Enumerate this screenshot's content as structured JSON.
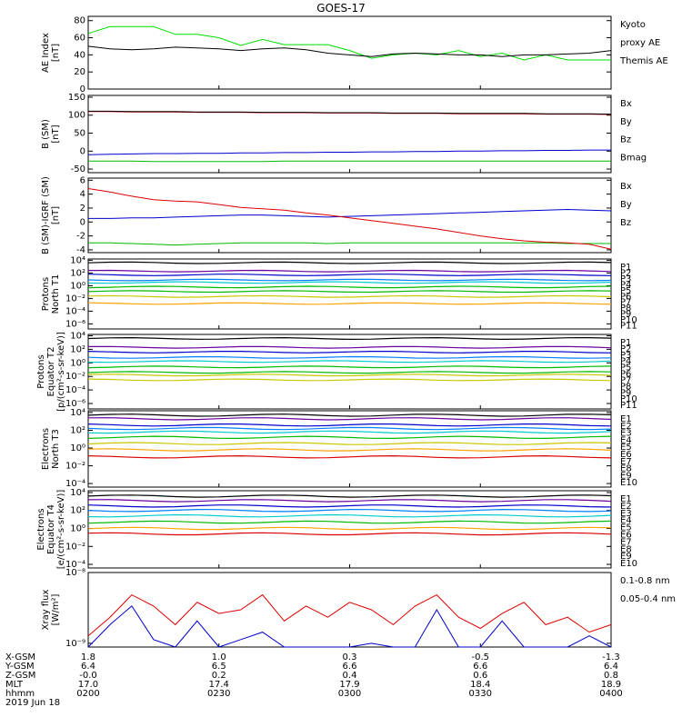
{
  "title": "GOES-17",
  "panels": [
    {
      "id": "ae",
      "ylabel": [
        "AE Index",
        "[nT]"
      ],
      "yticks": [
        "80",
        "60",
        "40",
        "20",
        "0"
      ],
      "legend": [
        {
          "text": "Kyoto",
          "color": "#00dd00"
        },
        {
          "text": "proxy AE",
          "color": "#00dd00"
        },
        {
          "text": "Themis AE",
          "color": "#000000"
        }
      ]
    },
    {
      "id": "bsm",
      "ylabel": [
        "B (SM)",
        "[nT]"
      ],
      "yticks": [
        "150",
        "100",
        "50",
        "0",
        "-50"
      ],
      "legend": [
        {
          "text": "Bx",
          "color": "#0000cc"
        },
        {
          "text": "By",
          "color": "#00bb00"
        },
        {
          "text": "Bz",
          "color": "#dd0000"
        },
        {
          "text": "Bmag",
          "color": "#000000"
        }
      ]
    },
    {
      "id": "bigrf",
      "ylabel": [
        "B (SM)-IGRF (SM)",
        "[nT]"
      ],
      "yticks": [
        "6",
        "4",
        "2",
        "0",
        "-2",
        "-4"
      ],
      "legend": [
        {
          "text": "Bx",
          "color": "#0000cc"
        },
        {
          "text": "By",
          "color": "#00bb00"
        },
        {
          "text": "Bz",
          "color": "#dd0000"
        }
      ]
    },
    {
      "id": "pnorth",
      "ylabel": [
        "Protons",
        "North T1"
      ],
      "yticks": [
        "10⁴",
        "10²",
        "10⁰",
        "10⁻²",
        "10⁻⁴",
        "10⁻⁶"
      ],
      "legend": [
        {
          "text": "P1",
          "color": "#000000"
        },
        {
          "text": "P2",
          "color": "#6a00a0"
        },
        {
          "text": "P3",
          "color": "#0000cc"
        },
        {
          "text": "P4",
          "color": "#0080ff"
        },
        {
          "text": "P5",
          "color": "#00cccc"
        },
        {
          "text": "P6",
          "color": "#00bb00"
        },
        {
          "text": "P7",
          "color": "#c8c800"
        },
        {
          "text": "P8",
          "color": "#ffa000"
        },
        {
          "text": "P9",
          "color": "#ff6000"
        },
        {
          "text": "P10",
          "color": "#dd0000"
        },
        {
          "text": "P11",
          "color": "#a00000"
        }
      ]
    },
    {
      "id": "peq",
      "ylabel": [
        "Protons",
        "Equator T2",
        "[p/(cm²-s-sr-keV)]"
      ],
      "yticks": [
        "10⁴",
        "10²",
        "10⁰",
        "10⁻²",
        "10⁻⁴",
        "10⁻⁶"
      ],
      "legend": [
        {
          "text": "P1",
          "color": "#000000"
        },
        {
          "text": "P2",
          "color": "#6a00a0"
        },
        {
          "text": "P3",
          "color": "#0000cc"
        },
        {
          "text": "P4",
          "color": "#0080ff"
        },
        {
          "text": "P5",
          "color": "#00cccc"
        },
        {
          "text": "P6",
          "color": "#00bb00"
        },
        {
          "text": "P7",
          "color": "#c8c800"
        },
        {
          "text": "P8",
          "color": "#ffa000"
        },
        {
          "text": "P9",
          "color": "#ff6000"
        },
        {
          "text": "P10",
          "color": "#dd0000"
        },
        {
          "text": "P11",
          "color": "#a00000"
        }
      ]
    },
    {
      "id": "enorth",
      "ylabel": [
        "Electrons",
        "North T3"
      ],
      "yticks": [
        "10⁴",
        "10²",
        "10⁰",
        "10⁻²",
        "10⁻⁴"
      ],
      "legend": [
        {
          "text": "E1",
          "color": "#000000"
        },
        {
          "text": "E2",
          "color": "#6a00a0"
        },
        {
          "text": "E3",
          "color": "#0000cc"
        },
        {
          "text": "E4",
          "color": "#0080ff"
        },
        {
          "text": "E5",
          "color": "#00cccc"
        },
        {
          "text": "E6",
          "color": "#00bb00"
        },
        {
          "text": "E7",
          "color": "#c8c800"
        },
        {
          "text": "E8",
          "color": "#ffa000"
        },
        {
          "text": "E9",
          "color": "#dd0000"
        },
        {
          "text": "E10",
          "color": "#a00000"
        }
      ]
    },
    {
      "id": "eeq",
      "ylabel": [
        "Electrons",
        "Equator T4",
        "[e/(cm²-s-sr-keV)]"
      ],
      "yticks": [
        "10⁴",
        "10²",
        "10⁰",
        "10⁻²",
        "10⁻⁴"
      ],
      "legend": [
        {
          "text": "E1",
          "color": "#000000"
        },
        {
          "text": "E2",
          "color": "#6a00a0"
        },
        {
          "text": "E3",
          "color": "#0000cc"
        },
        {
          "text": "E4",
          "color": "#0080ff"
        },
        {
          "text": "E5",
          "color": "#00cccc"
        },
        {
          "text": "E6",
          "color": "#00bb00"
        },
        {
          "text": "E7",
          "color": "#c8c800"
        },
        {
          "text": "E8",
          "color": "#ffa000"
        },
        {
          "text": "E9",
          "color": "#dd0000"
        },
        {
          "text": "E10",
          "color": "#a00000"
        }
      ]
    },
    {
      "id": "xray",
      "ylabel": [
        "Xray flux",
        "[W/m²]"
      ],
      "yticks": [
        "10⁻⁸",
        "10⁻⁹"
      ],
      "legend": [
        {
          "text": "0.1-0.8 nm",
          "color": "#dd0000"
        },
        {
          "text": "0.05-0.4 nm",
          "color": "#0000cc"
        }
      ]
    }
  ],
  "footer": {
    "labels": [
      "X-GSM",
      "Y-GSM",
      "Z-GSM",
      "MLT",
      "hhmm",
      "2019 Jun 18"
    ],
    "columns": [
      [
        "1.8",
        "6.4",
        "-0.0",
        "17.0",
        "0200"
      ],
      [
        "1.0",
        "6.5",
        "0.2",
        "17.4",
        "0230"
      ],
      [
        "0.3",
        "6.6",
        "0.4",
        "17.9",
        "0300"
      ],
      [
        "-0.5",
        "6.6",
        "0.6",
        "18.4",
        "0330"
      ],
      [
        "-1.3",
        "6.4",
        "0.8",
        "18.9",
        "0400"
      ]
    ]
  },
  "chart_data": {
    "type": "line",
    "title": "GOES-17",
    "x": [
      0,
      5,
      10,
      15,
      20,
      25,
      30,
      35,
      40,
      45,
      50,
      55,
      60,
      65,
      70,
      75,
      80,
      85,
      90,
      95,
      100,
      105,
      110,
      115,
      120
    ],
    "series": [
      {
        "name": "Kyoto proxy AE",
        "panel": "ae",
        "color": "#00dd00",
        "values": [
          65,
          73,
          73,
          73,
          64,
          64,
          60,
          51,
          58,
          52,
          52,
          52,
          45,
          36,
          40,
          42,
          40,
          45,
          38,
          42,
          34,
          40,
          34,
          34,
          34
        ]
      },
      {
        "name": "Themis AE",
        "panel": "ae",
        "color": "#000000",
        "values": [
          50,
          47,
          46,
          47,
          49,
          48,
          47,
          45,
          47,
          48,
          46,
          42,
          40,
          38,
          41,
          42,
          41,
          40,
          40,
          38,
          40,
          40,
          41,
          42,
          45
        ]
      },
      {
        "name": "Bx",
        "panel": "bsm",
        "color": "#0000cc",
        "values": [
          -10,
          -9,
          -8,
          -7,
          -7,
          -6,
          -6,
          -5,
          -5,
          -4,
          -4,
          -3,
          -3,
          -2,
          -2,
          -1,
          -1,
          0,
          0,
          1,
          1,
          2,
          2,
          3,
          3
        ]
      },
      {
        "name": "By",
        "panel": "bsm",
        "color": "#00bb00",
        "values": [
          -28,
          -28,
          -28,
          -29,
          -29,
          -29,
          -29,
          -29,
          -29,
          -28,
          -28,
          -28,
          -28,
          -28,
          -28,
          -28,
          -28,
          -28,
          -28,
          -28,
          -28,
          -28,
          -28,
          -28,
          -28
        ]
      },
      {
        "name": "Bz",
        "panel": "bsm",
        "color": "#dd0000",
        "values": [
          110,
          110,
          109,
          109,
          109,
          108,
          108,
          108,
          107,
          107,
          107,
          106,
          106,
          106,
          105,
          105,
          105,
          104,
          104,
          104,
          104,
          103,
          103,
          103,
          102
        ]
      },
      {
        "name": "Bmag",
        "panel": "bsm",
        "color": "#000000",
        "values": [
          111,
          111,
          110,
          110,
          110,
          109,
          109,
          109,
          108,
          108,
          108,
          107,
          107,
          107,
          106,
          106,
          106,
          105,
          105,
          105,
          105,
          104,
          104,
          104,
          103
        ]
      },
      {
        "name": "Bx",
        "panel": "bigrf",
        "color": "#0000cc",
        "values": [
          0.5,
          0.5,
          0.6,
          0.6,
          0.7,
          0.8,
          0.9,
          1.0,
          1.0,
          0.9,
          0.8,
          0.7,
          0.8,
          0.9,
          1.0,
          1.1,
          1.2,
          1.3,
          1.4,
          1.5,
          1.6,
          1.7,
          1.8,
          1.7,
          1.6
        ]
      },
      {
        "name": "By",
        "panel": "bigrf",
        "color": "#00bb00",
        "values": [
          -3.0,
          -3.0,
          -3.1,
          -3.2,
          -3.3,
          -3.2,
          -3.1,
          -3.0,
          -3.0,
          -3.0,
          -3.0,
          -3.1,
          -3.0,
          -3.0,
          -3.0,
          -3.0,
          -3.0,
          -3.0,
          -3.0,
          -3.0,
          -3.0,
          -3.0,
          -3.1,
          -3.1,
          -3.1
        ]
      },
      {
        "name": "Bz",
        "panel": "bigrf",
        "color": "#dd0000",
        "values": [
          4.8,
          4.3,
          3.7,
          3.2,
          3.0,
          2.9,
          2.5,
          2.1,
          1.9,
          1.7,
          1.3,
          1.0,
          0.6,
          0.2,
          -0.2,
          -0.6,
          -1.0,
          -1.5,
          -2.0,
          -2.4,
          -2.7,
          -2.9,
          -3.0,
          -3.2,
          -3.9
        ]
      },
      {
        "name": "X-ray 0.1-0.8 nm",
        "panel": "xray",
        "color": "#dd0000",
        "values": [
          0.15,
          0.4,
          0.7,
          0.55,
          0.3,
          0.6,
          0.45,
          0.5,
          0.7,
          0.35,
          0.55,
          0.4,
          0.6,
          0.5,
          0.3,
          0.55,
          0.7,
          0.4,
          0.25,
          0.45,
          0.6,
          0.3,
          0.4,
          0.2,
          0.3
        ]
      },
      {
        "name": "X-ray 0.05-0.4 nm",
        "panel": "xray",
        "color": "#0000cc",
        "values": [
          0.0,
          0.3,
          0.55,
          0.1,
          0.0,
          0.35,
          0.0,
          0.1,
          0.2,
          0.0,
          0.0,
          0.0,
          0.0,
          0.05,
          0.0,
          0.0,
          0.5,
          0.0,
          0.0,
          0.35,
          0.0,
          0.0,
          0.0,
          0.15,
          0.0
        ]
      }
    ],
    "log_panels": [
      {
        "panel": "pnorth",
        "levels": [
          3.6,
          2.3,
          1.7,
          0.9,
          0.5,
          -0.2,
          -0.9,
          -1.7,
          -2.8
        ],
        "colors": [
          "#000000",
          "#6a00a0",
          "#0000cc",
          "#0080ff",
          "#00cccc",
          "#00bb00",
          "#00bb00",
          "#c8c800",
          "#ffa000"
        ]
      },
      {
        "panel": "peq",
        "levels": [
          3.6,
          2.3,
          1.6,
          0.8,
          0.2,
          -0.6,
          -1.4,
          -1.8,
          -2.5
        ],
        "colors": [
          "#000000",
          "#6a00a0",
          "#0000cc",
          "#0080ff",
          "#00cccc",
          "#00bb00",
          "#00bb00",
          "#c8c800",
          "#c8c800"
        ]
      },
      {
        "panel": "enorth",
        "levels": [
          3.7,
          3.3,
          2.6,
          2.2,
          1.8,
          1.2,
          0.5,
          -0.2,
          -1.0
        ],
        "colors": [
          "#000000",
          "#6a00a0",
          "#0000cc",
          "#0080ff",
          "#00cccc",
          "#00bb00",
          "#c8c800",
          "#ffa000",
          "#dd0000"
        ]
      },
      {
        "panel": "eeq",
        "levels": [
          3.6,
          3.1,
          2.5,
          2.0,
          1.4,
          0.7,
          0.0,
          -0.6
        ],
        "colors": [
          "#000000",
          "#6a00a0",
          "#0000cc",
          "#0080ff",
          "#00cccc",
          "#00bb00",
          "#ffa000",
          "#dd0000"
        ]
      }
    ]
  }
}
